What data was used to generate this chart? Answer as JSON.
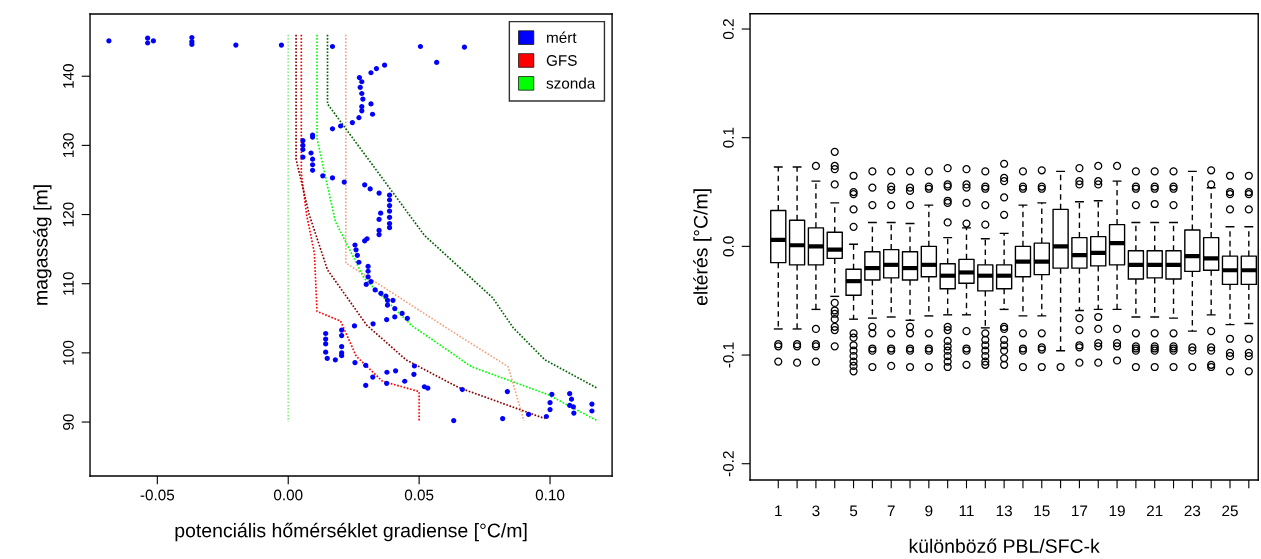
{
  "chart_data": [
    {
      "type": "scatter",
      "xlabel": "potenciális hőmérséklet gradiense [°C/m]",
      "ylabel": "magasság [m]",
      "xlim": [
        -0.0757,
        0.1237
      ],
      "ylim": [
        82.2,
        149.0
      ],
      "xticks": [
        {
          "value": -0.05,
          "label": "-0.05"
        },
        {
          "value": 0,
          "label": "0.00"
        },
        {
          "value": 0.05,
          "label": "0.05"
        },
        {
          "value": 0.1,
          "label": "0.10"
        }
      ],
      "yticks": [
        90,
        100,
        110,
        120,
        130,
        140
      ],
      "grid": false,
      "legend": "top right",
      "series": [
        {
          "name": "GFS",
          "type": "line",
          "line_style": "dotted",
          "marker": "none",
          "color": "#ff0000",
          "x": [
            0.005,
            0.005,
            0.007,
            0.01,
            0.011,
            0.02,
            0.026,
            0.036,
            0.05,
            0.05
          ],
          "values": [
            146,
            126,
            120,
            114.4,
            106,
            104.6,
            99.5,
            95.9,
            94.4,
            90.2
          ]
        },
        {
          "type": "line",
          "line_style": "dotted",
          "marker": "none",
          "color": "#f4a582",
          "x": [
            0.022,
            0.022,
            0.063,
            0.084,
            0.09
          ],
          "values": [
            146,
            113,
            103,
            98,
            90.2
          ]
        },
        {
          "type": "line",
          "line_style": "dotted",
          "marker": "none",
          "color": "#8b0000",
          "x": [
            0.003,
            0.003,
            0.008,
            0.015,
            0.03,
            0.045,
            0.065,
            0.098
          ],
          "values": [
            146,
            128,
            120,
            112,
            104,
            99,
            95,
            90.5
          ]
        },
        {
          "name": "szonda",
          "type": "line",
          "line_style": "dotted",
          "marker": "none",
          "color": "#00ff00",
          "x": [
            0.011,
            0.011,
            0.018,
            0.029,
            0.047,
            0.07,
            0.099,
            0.118
          ],
          "values": [
            146,
            131,
            119,
            110.8,
            104,
            98,
            94,
            90.2
          ]
        },
        {
          "type": "line",
          "line_style": "dotted",
          "marker": "none",
          "color": "#006400",
          "x": [
            0.015,
            0.015,
            0.052,
            0.078,
            0.086,
            0.098,
            0.118
          ],
          "values": [
            146,
            136,
            117,
            108,
            103.6,
            99,
            94.9
          ]
        },
        {
          "type": "line",
          "line_style": "dotted",
          "marker": "none",
          "color": "#90ee90",
          "x": [
            0.0,
            0.0
          ],
          "values": [
            146,
            90
          ]
        },
        {
          "name": "mért",
          "type": "scatter",
          "marker": "circle",
          "color": "#0000ff",
          "x": [
            -0.0685,
            -0.0537,
            -0.0537,
            -0.0515,
            -0.0368,
            -0.0368,
            -0.0368,
            -0.02,
            -0.0026,
            0.0169,
            0.0505,
            0.0673,
            0.0567,
            0.0368,
            0.0337,
            0.0316,
            0.0272,
            0.0281,
            0.0275,
            0.0281,
            0.0285,
            0.0316,
            0.0281,
            0.0281,
            0.0322,
            0.027,
            0.0245,
            0.02,
            0.0169,
            0.0093,
            0.0093,
            0.0056,
            0.0056,
            0.0056,
            0.0087,
            0.0056,
            0.0093,
            0.0093,
            0.0093,
            0.0132,
            0.0169,
            0.0214,
            0.0292,
            0.0313,
            0.0347,
            0.0387,
            0.0387,
            0.0387,
            0.0387,
            0.0353,
            0.0347,
            0.0387,
            0.0387,
            0.0387,
            0.0347,
            0.0347,
            0.0301,
            0.0292,
            0.0255,
            0.0259,
            0.0264,
            0.027,
            0.0305,
            0.0305,
            0.0305,
            0.0298,
            0.0316,
            0.0332,
            0.0354,
            0.0373,
            0.0379,
            0.04,
            0.0379,
            0.0407,
            0.0407,
            0.0435,
            0.0455,
            0.0376,
            0.0324,
            0.0253,
            0.0204,
            0.0143,
            0.0143,
            0.0143,
            0.0204,
            0.0204,
            0.0204,
            0.0204,
            0.0143,
            0.0149,
            0.018,
            0.0255,
            0.0296,
            0.0482,
            0.048,
            0.041,
            0.0377,
            0.0445,
            0.0376,
            0.0323,
            0.0296,
            0.052,
            0.0533,
            0.0665,
            0.0837,
            0.1007,
            0.1075,
            0.1082,
            0.1075,
            0.1089,
            0.1091,
            0.1,
            0.1,
            0.116,
            0.116,
            0.0986,
            0.0918,
            0.0819,
            0.0632
          ],
          "values": [
            145.1,
            145.5,
            144.8,
            145.1,
            145.6,
            145.0,
            144.6,
            144.5,
            144.5,
            144.3,
            144.3,
            144.2,
            142.0,
            141.6,
            141.1,
            140.5,
            139.8,
            139.2,
            138.4,
            137.5,
            136.7,
            136.0,
            135.6,
            135.0,
            134.5,
            134.0,
            133.3,
            132.8,
            132.4,
            131.5,
            131.2,
            130.7,
            130.0,
            129.4,
            128.9,
            128.3,
            128.0,
            127.2,
            126.4,
            125.6,
            125.3,
            124.7,
            124.3,
            123.7,
            123.1,
            122.8,
            122.1,
            121.3,
            120.5,
            120.2,
            119.3,
            119.6,
            118.7,
            118.1,
            117.7,
            117.1,
            116.5,
            116.2,
            115.6,
            114.9,
            114.1,
            113.1,
            112.5,
            111.8,
            111.0,
            109.9,
            110.3,
            109.1,
            108.6,
            108.2,
            107.6,
            107.6,
            106.9,
            106.4,
            105.2,
            105.7,
            105.0,
            104.8,
            104.2,
            103.9,
            103.3,
            102.8,
            102.0,
            101.3,
            102.5,
            100.9,
            100.0,
            99.6,
            100.1,
            99.2,
            99.0,
            98.6,
            98.2,
            98.1,
            96.9,
            97.4,
            97.2,
            95.9,
            95.6,
            96.5,
            95.3,
            95.1,
            94.9,
            94.7,
            94.4,
            94.0,
            94.1,
            93.3,
            92.4,
            92.2,
            91.3,
            92.8,
            91.8,
            92.6,
            91.6,
            90.8,
            91.1,
            90.5,
            90.2
          ]
        }
      ]
    },
    {
      "type": "box",
      "xlabel": "különböző PBL/SFC-k",
      "ylabel": "eltérés [°C/m]",
      "ylim": [
        -0.215,
        0.214
      ],
      "yticks": [
        {
          "value": -0.2,
          "label": "-0.2"
        },
        {
          "value": -0.1,
          "label": "-0.1"
        },
        {
          "value": 0,
          "label": "0.0"
        },
        {
          "value": 0.1,
          "label": "0.1"
        },
        {
          "value": 0.2,
          "label": "0.2"
        }
      ],
      "grid": false,
      "categories": [
        "1",
        null,
        "3",
        null,
        "5",
        null,
        "7",
        null,
        "9",
        null,
        "11",
        null,
        "13",
        null,
        "15",
        null,
        "17",
        null,
        "19",
        null,
        "21",
        null,
        "23",
        null,
        "25",
        null
      ],
      "boxes": [
        {
          "low": -0.076,
          "q1": -0.015,
          "median": 0.006,
          "q3": 0.033,
          "high": 0.073,
          "outliers": [
            -0.09,
            -0.092,
            -0.106
          ]
        },
        {
          "low": -0.076,
          "q1": -0.017,
          "median": 0.001,
          "q3": 0.024,
          "high": 0.073,
          "outliers": [
            -0.09,
            -0.092,
            -0.107
          ]
        },
        {
          "low": -0.058,
          "q1": -0.017,
          "median": 0.0,
          "q3": 0.017,
          "high": 0.06,
          "outliers": [
            0.074,
            -0.076,
            -0.09,
            -0.092,
            -0.106
          ]
        },
        {
          "low": -0.046,
          "q1": -0.011,
          "median": -0.003,
          "q3": 0.013,
          "high": 0.04,
          "outliers": [
            0.087,
            0.074,
            0.071,
            0.057,
            -0.052,
            -0.059,
            -0.062,
            -0.067,
            -0.074,
            -0.077,
            -0.092
          ]
        },
        {
          "low": -0.067,
          "q1": -0.045,
          "median": -0.032,
          "q3": -0.021,
          "high": 0.002,
          "outliers": [
            0.065,
            0.05,
            0.048,
            0.034,
            0.018,
            -0.08,
            -0.084,
            -0.091,
            -0.096,
            -0.101,
            -0.106,
            -0.11,
            -0.115
          ]
        },
        {
          "low": -0.066,
          "q1": -0.031,
          "median": -0.02,
          "q3": -0.005,
          "high": 0.022,
          "outliers": [
            0.069,
            0.054,
            0.038,
            -0.074,
            -0.08,
            -0.094,
            -0.096,
            -0.111
          ]
        },
        {
          "low": -0.065,
          "q1": -0.029,
          "median": -0.017,
          "q3": -0.003,
          "high": 0.022,
          "outliers": [
            0.069,
            0.055,
            0.052,
            0.038,
            -0.08,
            -0.094,
            -0.096,
            -0.11
          ]
        },
        {
          "low": -0.068,
          "q1": -0.031,
          "median": -0.02,
          "q3": -0.005,
          "high": 0.021,
          "outliers": [
            0.069,
            0.054,
            0.051,
            0.038,
            -0.074,
            -0.08,
            -0.094,
            -0.096,
            -0.111
          ]
        },
        {
          "low": -0.064,
          "q1": -0.028,
          "median": -0.017,
          "q3": 0.0,
          "high": 0.038,
          "outliers": [
            0.069,
            0.055,
            0.053,
            -0.08,
            -0.094,
            -0.096,
            -0.111
          ]
        },
        {
          "low": -0.063,
          "q1": -0.039,
          "median": -0.027,
          "q3": -0.016,
          "high": 0.008,
          "outliers": [
            0.072,
            0.057,
            0.055,
            0.042,
            0.04,
            0.022,
            -0.074,
            -0.077,
            -0.087,
            -0.092,
            -0.096,
            -0.101,
            -0.106,
            -0.111
          ]
        },
        {
          "low": -0.063,
          "q1": -0.034,
          "median": -0.024,
          "q3": -0.012,
          "high": 0.017,
          "outliers": [
            0.071,
            0.057,
            0.054,
            0.04,
            0.021,
            -0.078,
            -0.094,
            -0.096,
            -0.109
          ]
        },
        {
          "low": -0.075,
          "q1": -0.041,
          "median": -0.027,
          "q3": -0.017,
          "high": 0.007,
          "outliers": [
            0.069,
            0.055,
            0.053,
            0.038,
            0.02,
            -0.08,
            -0.086,
            -0.091,
            -0.096,
            -0.101,
            -0.106,
            -0.109
          ]
        },
        {
          "low": -0.058,
          "q1": -0.039,
          "median": -0.027,
          "q3": -0.017,
          "high": 0.012,
          "outliers": [
            0.076,
            0.063,
            0.06,
            0.045,
            0.029,
            -0.074,
            -0.076,
            -0.086,
            -0.091,
            -0.096,
            -0.103,
            -0.109
          ]
        },
        {
          "low": -0.064,
          "q1": -0.028,
          "median": -0.014,
          "q3": 0.0,
          "high": 0.038,
          "outliers": [
            0.069,
            0.055,
            0.053,
            -0.08,
            -0.094,
            -0.096,
            -0.111
          ]
        },
        {
          "low": -0.064,
          "q1": -0.026,
          "median": -0.014,
          "q3": 0.003,
          "high": 0.04,
          "outliers": [
            0.07,
            0.055,
            0.053,
            -0.08,
            -0.093,
            -0.095,
            -0.111
          ]
        },
        {
          "low": -0.096,
          "q1": -0.02,
          "median": 0.0,
          "q3": 0.034,
          "high": 0.069,
          "outliers": [
            -0.111
          ]
        },
        {
          "low": -0.059,
          "q1": -0.02,
          "median": -0.008,
          "q3": 0.008,
          "high": 0.041,
          "outliers": [
            0.072,
            0.06,
            0.057,
            -0.066,
            -0.077,
            -0.091,
            -0.093,
            -0.107
          ]
        },
        {
          "low": -0.058,
          "q1": -0.018,
          "median": -0.006,
          "q3": 0.009,
          "high": 0.042,
          "outliers": [
            0.074,
            0.06,
            0.057,
            -0.065,
            -0.076,
            -0.089,
            -0.092,
            -0.107
          ]
        },
        {
          "low": -0.058,
          "q1": -0.017,
          "median": 0.003,
          "q3": 0.02,
          "high": 0.06,
          "outliers": [
            0.074,
            -0.076,
            -0.089,
            -0.092,
            -0.105
          ]
        },
        {
          "low": -0.065,
          "q1": -0.03,
          "median": -0.017,
          "q3": -0.004,
          "high": 0.022,
          "outliers": [
            0.069,
            0.055,
            0.053,
            0.038,
            -0.08,
            -0.092,
            -0.094,
            -0.096,
            -0.111
          ]
        },
        {
          "low": -0.065,
          "q1": -0.029,
          "median": -0.017,
          "q3": -0.004,
          "high": 0.022,
          "outliers": [
            0.069,
            0.055,
            0.053,
            0.039,
            -0.08,
            -0.092,
            -0.094,
            -0.096,
            -0.111
          ]
        },
        {
          "low": -0.066,
          "q1": -0.03,
          "median": -0.017,
          "q3": -0.004,
          "high": 0.022,
          "outliers": [
            0.069,
            0.055,
            0.053,
            0.038,
            -0.08,
            -0.092,
            -0.094,
            -0.096,
            -0.111
          ]
        },
        {
          "low": -0.078,
          "q1": -0.023,
          "median": -0.009,
          "q3": 0.015,
          "high": 0.069,
          "outliers": [
            -0.093,
            -0.096,
            -0.111
          ]
        },
        {
          "low": -0.063,
          "q1": -0.022,
          "median": -0.011,
          "q3": 0.008,
          "high": 0.054,
          "outliers": [
            0.07,
            0.057,
            -0.078,
            -0.093,
            -0.096,
            -0.109,
            -0.111
          ]
        },
        {
          "low": -0.072,
          "q1": -0.035,
          "median": -0.022,
          "q3": -0.009,
          "high": 0.018,
          "outliers": [
            0.065,
            0.05,
            0.048,
            0.034,
            -0.085,
            -0.098,
            -0.101,
            -0.115
          ]
        },
        {
          "low": -0.071,
          "q1": -0.035,
          "median": -0.022,
          "q3": -0.009,
          "high": 0.018,
          "outliers": [
            0.065,
            0.05,
            0.048,
            0.034,
            -0.085,
            -0.098,
            -0.101,
            -0.115
          ]
        }
      ]
    }
  ]
}
